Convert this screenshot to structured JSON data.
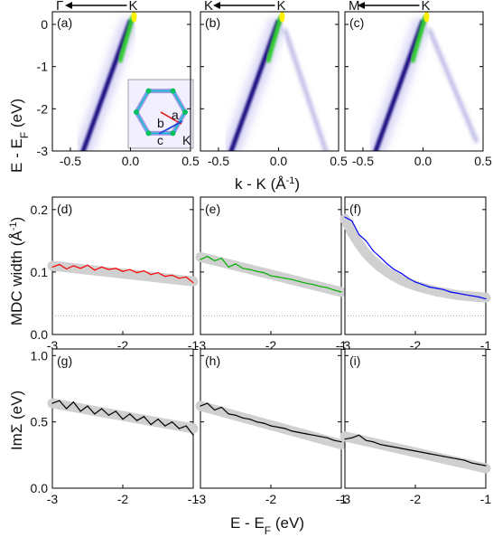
{
  "colors": {
    "band_dark": "#1a1080",
    "band_light": "#8a7fe0",
    "band_hot": "#fff200",
    "band_green": "#2ecc2e",
    "fit_band": "#d0d0d0",
    "red": "#ff0000",
    "green": "#00b000",
    "blue": "#0000ff",
    "black": "#000000"
  },
  "top_row": {
    "ylabel_main": "E - E",
    "ylabel_sub": "F",
    "ylabel_tail": " (eV)",
    "xlabel_main": "k - K (Å",
    "xlabel_sup": "-1",
    "xlabel_tail": ")",
    "yticks": [
      "0",
      "-1",
      "-2",
      "-3"
    ],
    "xticks": [
      "-0.5",
      "0.0",
      "0.5"
    ],
    "panels": [
      {
        "label": "(a)",
        "dir_left": "Γ",
        "dir_right": "K",
        "show_inset": true
      },
      {
        "label": "(b)",
        "dir_left": "K",
        "dir_right": "K",
        "show_inset": false
      },
      {
        "label": "(c)",
        "dir_left": "M",
        "dir_right": "K",
        "show_inset": false
      }
    ],
    "inset": {
      "labels": [
        "a",
        "b",
        "c",
        "K"
      ]
    }
  },
  "chart_data": [
    {
      "type": "line",
      "ylabel_main": "MDC width (Å",
      "ylabel_sup": "-1",
      "ylabel_tail": ")",
      "xlim": [
        -3,
        -1
      ],
      "ylim": [
        0,
        0.22
      ],
      "xticks": [
        "-3",
        "-2",
        "-1"
      ],
      "yticks": [
        "0.0",
        "0.1",
        "0.2"
      ],
      "ref_line": 0.03,
      "panels": [
        {
          "label": "(d)",
          "color": "red",
          "x": [
            -3.0,
            -2.9,
            -2.8,
            -2.7,
            -2.6,
            -2.5,
            -2.4,
            -2.3,
            -2.2,
            -2.1,
            -2.0,
            -1.9,
            -1.8,
            -1.7,
            -1.6,
            -1.5,
            -1.4,
            -1.3,
            -1.2,
            -1.1,
            -1.0
          ],
          "values": [
            0.108,
            0.112,
            0.105,
            0.11,
            0.106,
            0.111,
            0.103,
            0.108,
            0.104,
            0.106,
            0.101,
            0.104,
            0.099,
            0.102,
            0.096,
            0.099,
            0.093,
            0.095,
            0.09,
            0.092,
            0.083
          ],
          "fit": [
            0.11,
            0.085
          ]
        },
        {
          "label": "(e)",
          "color": "green",
          "x": [
            -3.0,
            -2.9,
            -2.8,
            -2.7,
            -2.6,
            -2.5,
            -2.4,
            -2.3,
            -2.2,
            -2.1,
            -2.0,
            -1.9,
            -1.8,
            -1.7,
            -1.6,
            -1.5,
            -1.4,
            -1.3,
            -1.2,
            -1.1,
            -1.0
          ],
          "values": [
            0.12,
            0.125,
            0.118,
            0.122,
            0.108,
            0.113,
            0.106,
            0.104,
            0.101,
            0.099,
            0.094,
            0.092,
            0.09,
            0.088,
            0.085,
            0.082,
            0.08,
            0.077,
            0.075,
            0.071,
            0.068
          ],
          "fit": [
            0.124,
            0.068
          ]
        },
        {
          "label": "(f)",
          "color": "blue",
          "x": [
            -3.0,
            -2.9,
            -2.8,
            -2.7,
            -2.6,
            -2.5,
            -2.4,
            -2.3,
            -2.2,
            -2.1,
            -2.0,
            -1.9,
            -1.8,
            -1.7,
            -1.6,
            -1.5,
            -1.4,
            -1.3,
            -1.2,
            -1.1,
            -1.0
          ],
          "values": [
            0.188,
            0.182,
            0.16,
            0.15,
            0.134,
            0.124,
            0.113,
            0.104,
            0.098,
            0.09,
            0.084,
            0.08,
            0.076,
            0.074,
            0.072,
            0.068,
            0.066,
            0.064,
            0.062,
            0.06,
            0.057
          ],
          "fit_curve": [
            0.185,
            0.163,
            0.145,
            0.13,
            0.118,
            0.108,
            0.1,
            0.093,
            0.087,
            0.082,
            0.078,
            0.075,
            0.072,
            0.069,
            0.067,
            0.065,
            0.063,
            0.062,
            0.061,
            0.06,
            0.059
          ]
        }
      ]
    },
    {
      "type": "line",
      "ylabel_main": "ImΣ (eV)",
      "xlabel_main": "E - E",
      "xlabel_sub": "F",
      "xlabel_tail": " (eV)",
      "xlim": [
        -3,
        -1
      ],
      "ylim": [
        0,
        1.05
      ],
      "xticks": [
        "-3",
        "-2",
        "-1"
      ],
      "yticks": [
        "0.0",
        "0.5",
        "1.0"
      ],
      "panels": [
        {
          "label": "(g)",
          "color": "black",
          "x": [
            -3.0,
            -2.9,
            -2.8,
            -2.7,
            -2.6,
            -2.5,
            -2.4,
            -2.3,
            -2.2,
            -2.1,
            -2.0,
            -1.9,
            -1.8,
            -1.7,
            -1.6,
            -1.5,
            -1.4,
            -1.3,
            -1.2,
            -1.1,
            -1.0
          ],
          "values": [
            0.64,
            0.66,
            0.6,
            0.65,
            0.58,
            0.62,
            0.56,
            0.6,
            0.55,
            0.58,
            0.52,
            0.56,
            0.51,
            0.54,
            0.48,
            0.52,
            0.47,
            0.5,
            0.45,
            0.47,
            0.4
          ],
          "fit": [
            0.64,
            0.45
          ]
        },
        {
          "label": "(h)",
          "color": "black",
          "x": [
            -3.0,
            -2.9,
            -2.8,
            -2.7,
            -2.6,
            -2.5,
            -2.4,
            -2.3,
            -2.2,
            -2.1,
            -2.0,
            -1.9,
            -1.8,
            -1.7,
            -1.6,
            -1.5,
            -1.4,
            -1.3,
            -1.2,
            -1.1,
            -1.0
          ],
          "values": [
            0.62,
            0.64,
            0.59,
            0.61,
            0.56,
            0.55,
            0.53,
            0.52,
            0.5,
            0.49,
            0.47,
            0.46,
            0.45,
            0.43,
            0.42,
            0.41,
            0.4,
            0.39,
            0.38,
            0.36,
            0.35
          ],
          "fit": [
            0.62,
            0.33
          ]
        },
        {
          "label": "(i)",
          "color": "black",
          "x": [
            -3.0,
            -2.9,
            -2.8,
            -2.7,
            -2.6,
            -2.5,
            -2.4,
            -2.3,
            -2.2,
            -2.1,
            -2.0,
            -1.9,
            -1.8,
            -1.7,
            -1.6,
            -1.5,
            -1.4,
            -1.3,
            -1.2,
            -1.1,
            -1.0
          ],
          "values": [
            0.37,
            0.38,
            0.4,
            0.36,
            0.35,
            0.33,
            0.32,
            0.31,
            0.3,
            0.29,
            0.28,
            0.27,
            0.26,
            0.25,
            0.24,
            0.23,
            0.22,
            0.21,
            0.19,
            0.18,
            0.17
          ],
          "fit": [
            0.39,
            0.15
          ]
        }
      ]
    }
  ]
}
